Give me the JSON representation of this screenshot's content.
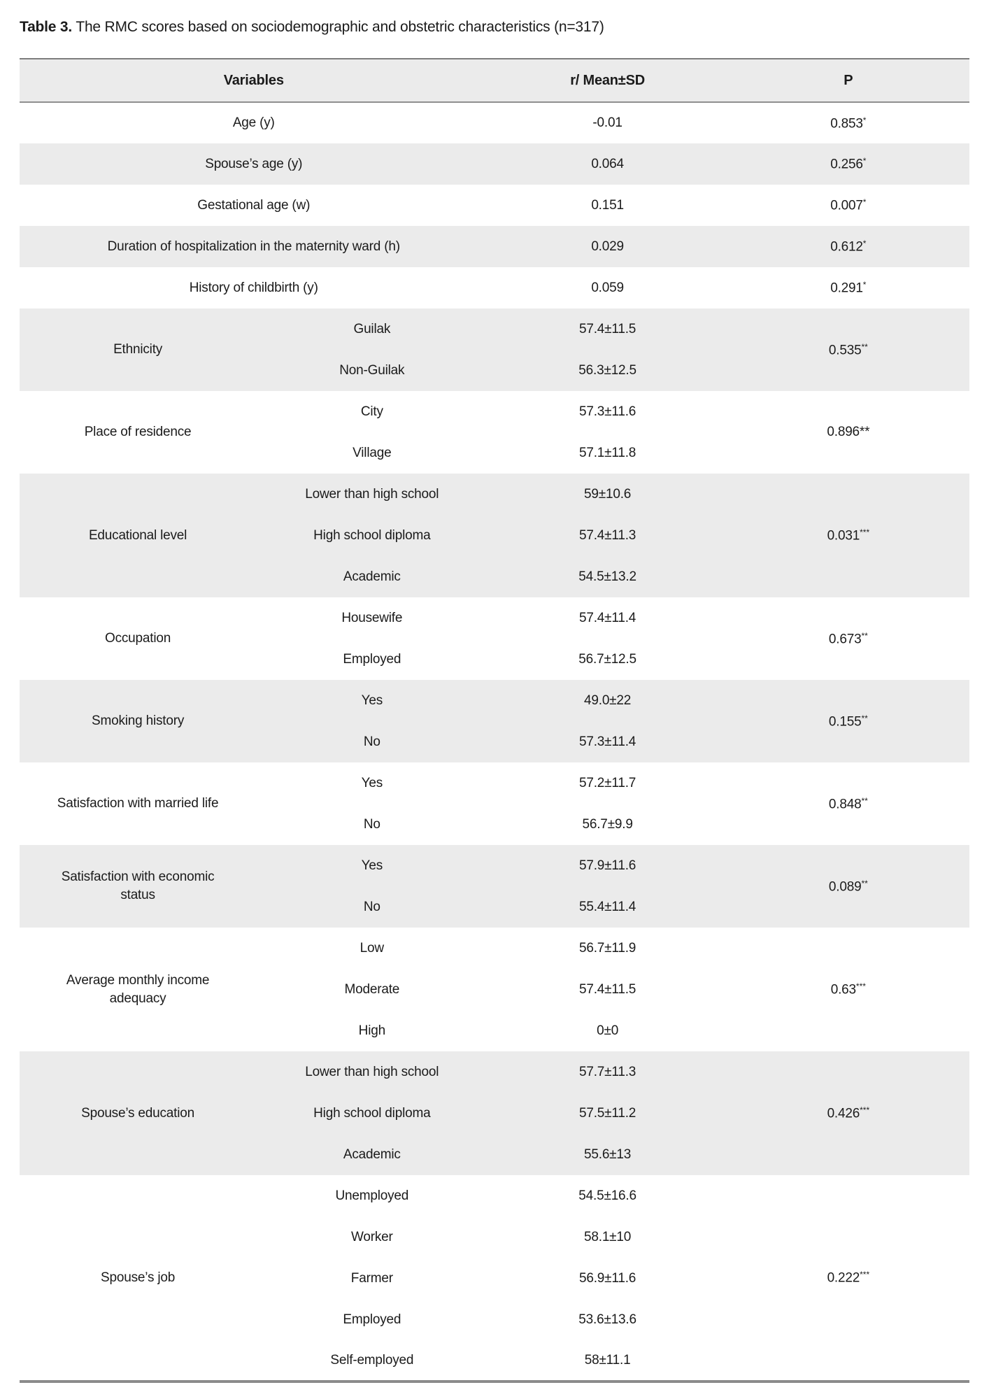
{
  "title": {
    "label": "Table 3.",
    "text": "The RMC scores based on sociodemographic and obstetric characteristics (n=317)"
  },
  "colors": {
    "row_shade": "#ebebeb",
    "rule_top": "#7d7d7d",
    "rule_mid": "#8f8f8f",
    "rule_bottom": "#8b8b8b",
    "text": "#1b1b1b"
  },
  "table": {
    "headers": {
      "variables": "Variables",
      "mean": "r/ Mean±SD",
      "p": "P"
    },
    "groups": [
      {
        "variable": "Age (y)",
        "rows": [
          {
            "value": "-0.01"
          }
        ],
        "p": "0.853",
        "p_sup": "*"
      },
      {
        "variable": "Spouse’s age (y)",
        "rows": [
          {
            "value": "0.064"
          }
        ],
        "p": "0.256",
        "p_sup": "*"
      },
      {
        "variable": "Gestational age (w)",
        "rows": [
          {
            "value": "0.151"
          }
        ],
        "p": "0.007",
        "p_sup": "*"
      },
      {
        "variable": "Duration of hospitalization in the maternity ward (h)",
        "rows": [
          {
            "value": "0.029"
          }
        ],
        "p": "0.612",
        "p_sup": "*"
      },
      {
        "variable": "History of childbirth (y)",
        "rows": [
          {
            "value": "0.059"
          }
        ],
        "p": "0.291",
        "p_sup": "*"
      },
      {
        "variable": "Ethnicity",
        "rows": [
          {
            "label": "Guilak",
            "value": "57.4±11.5"
          },
          {
            "label": "Non-Guilak",
            "value": "56.3±12.5"
          }
        ],
        "p": "0.535",
        "p_sup": "**"
      },
      {
        "variable": "Place of residence",
        "rows": [
          {
            "label": "City",
            "value": "57.3±11.6"
          },
          {
            "label": "Village",
            "value": "57.1±11.8"
          }
        ],
        "p": "0.896**",
        "p_sup": ""
      },
      {
        "variable": "Educational level",
        "rows": [
          {
            "label": "Lower than high school",
            "value": "59±10.6"
          },
          {
            "label": "High school diploma",
            "value": "57.4±11.3"
          },
          {
            "label": "Academic",
            "value": "54.5±13.2"
          }
        ],
        "p": "0.031",
        "p_sup": "***"
      },
      {
        "variable": "Occupation",
        "rows": [
          {
            "label": "Housewife",
            "value": "57.4±11.4"
          },
          {
            "label": "Employed",
            "value": "56.7±12.5"
          }
        ],
        "p": "0.673",
        "p_sup": "**"
      },
      {
        "variable": "Smoking history",
        "rows": [
          {
            "label": "Yes",
            "value": "49.0±22"
          },
          {
            "label": "No",
            "value": "57.3±11.4"
          }
        ],
        "p": "0.155",
        "p_sup": "**"
      },
      {
        "variable": "Satisfaction with married life",
        "rows": [
          {
            "label": "Yes",
            "value": "57.2±11.7"
          },
          {
            "label": "No",
            "value": "56.7±9.9"
          }
        ],
        "p": "0.848",
        "p_sup": "**"
      },
      {
        "variable": "Satisfaction with economic status",
        "rows": [
          {
            "label": "Yes",
            "value": "57.9±11.6"
          },
          {
            "label": "No",
            "value": "55.4±11.4"
          }
        ],
        "p": "0.089",
        "p_sup": "**"
      },
      {
        "variable": "Average monthly income adequacy",
        "rows": [
          {
            "label": "Low",
            "value": "56.7±11.9"
          },
          {
            "label": "Moderate",
            "value": "57.4±11.5"
          },
          {
            "label": "High",
            "value": "0±0"
          }
        ],
        "p": "0.63",
        "p_sup": "***"
      },
      {
        "variable": "Spouse’s education",
        "rows": [
          {
            "label": "Lower than high school",
            "value": "57.7±11.3"
          },
          {
            "label": "High school diploma",
            "value": "57.5±11.2"
          },
          {
            "label": "Academic",
            "value": "55.6±13"
          }
        ],
        "p": "0.426",
        "p_sup": "***"
      },
      {
        "variable": "Spouse’s job",
        "rows": [
          {
            "label": "Unemployed",
            "value": "54.5±16.6"
          },
          {
            "label": "Worker",
            "value": "58.1±10"
          },
          {
            "label": "Farmer",
            "value": "56.9±11.6"
          },
          {
            "label": "Employed",
            "value": "53.6±13.6"
          },
          {
            "label": "Self-employed",
            "value": "58±11.1"
          }
        ],
        "p": "0.222",
        "p_sup": "***"
      }
    ]
  }
}
